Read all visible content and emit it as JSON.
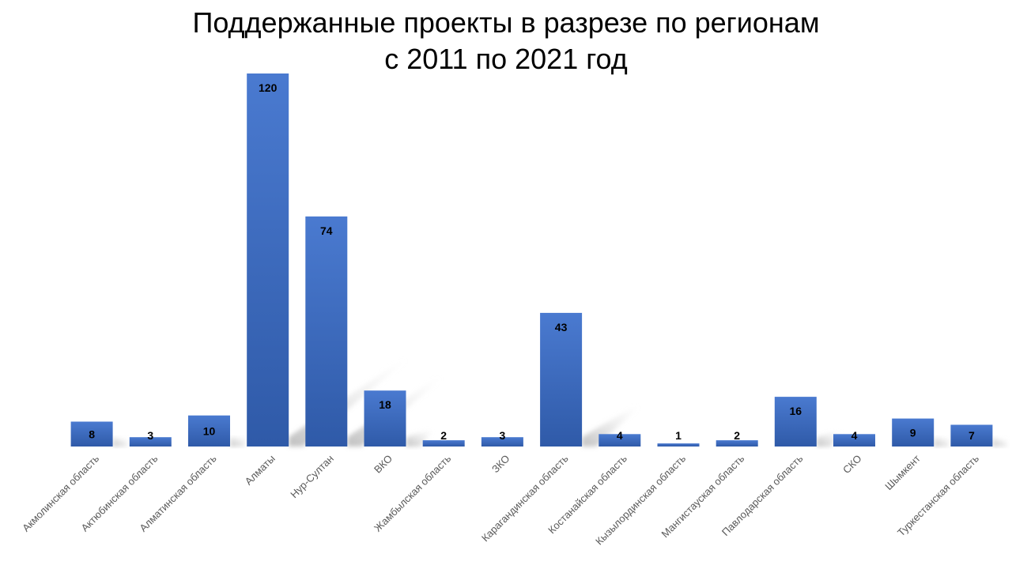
{
  "chart_data": {
    "type": "bar",
    "title": "Поддержанные проекты в разрезе по регионам",
    "subtitle": "с 2011 по 2021 год",
    "xlabel": "",
    "ylabel": "",
    "ylim": [
      0,
      120
    ],
    "grid": false,
    "legend": "none",
    "bar_color": "#4472c4",
    "label_color": "#595959",
    "categories": [
      "Акмолинская область",
      "Актюбинская область",
      "Алматинская область",
      "Алматы",
      "Нур-Султан",
      "ВКО",
      "Жамбылская область",
      "ЗКО",
      "Карагандинская область",
      "Костанайская область",
      "Кызылординская область",
      "Мангистауская область",
      "Павлодарская область",
      "СКО",
      "Шымкент",
      "Туркестанская область"
    ],
    "values": [
      8,
      3,
      10,
      120,
      74,
      18,
      2,
      3,
      43,
      4,
      1,
      2,
      16,
      4,
      9,
      7
    ]
  }
}
